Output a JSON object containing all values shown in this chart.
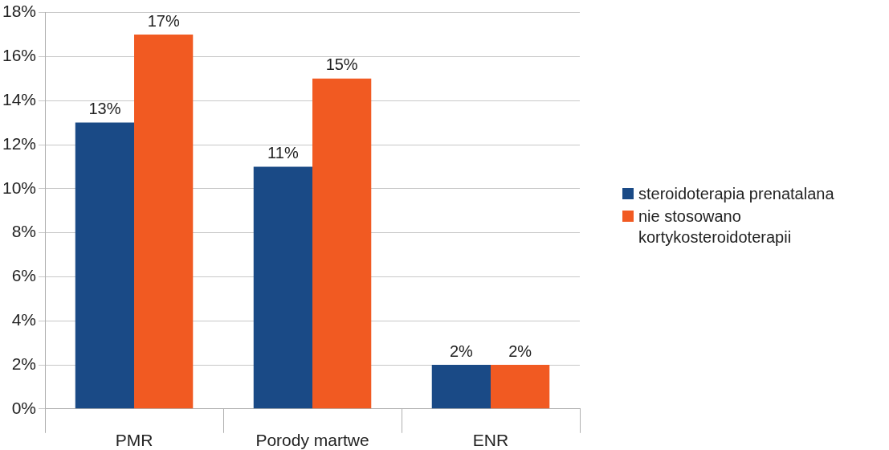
{
  "chart_data": {
    "type": "bar",
    "categories": [
      "PMR",
      "Porody martwe",
      "ENR"
    ],
    "series": [
      {
        "name": "steroidoterapia prenatalana",
        "color": "#1a4a86",
        "values": [
          13,
          11,
          2
        ],
        "value_labels": [
          "13%",
          "11%",
          "2%"
        ]
      },
      {
        "name": "nie stosowano kortykosteroidoterapii",
        "color": "#f15a22",
        "values": [
          17,
          15,
          2
        ],
        "value_labels": [
          "17%",
          "15%",
          "2%"
        ]
      }
    ],
    "ylim": [
      0,
      18
    ],
    "yticks": [
      {
        "value": 0,
        "label": "0%"
      },
      {
        "value": 2,
        "label": "2%"
      },
      {
        "value": 4,
        "label": "4%"
      },
      {
        "value": 6,
        "label": "6%"
      },
      {
        "value": 8,
        "label": "8%"
      },
      {
        "value": 10,
        "label": "10%"
      },
      {
        "value": 12,
        "label": "12%"
      },
      {
        "value": 14,
        "label": "14%"
      },
      {
        "value": 16,
        "label": "16%"
      },
      {
        "value": 18,
        "label": "18%"
      }
    ],
    "grid": "y",
    "legend": "right"
  }
}
